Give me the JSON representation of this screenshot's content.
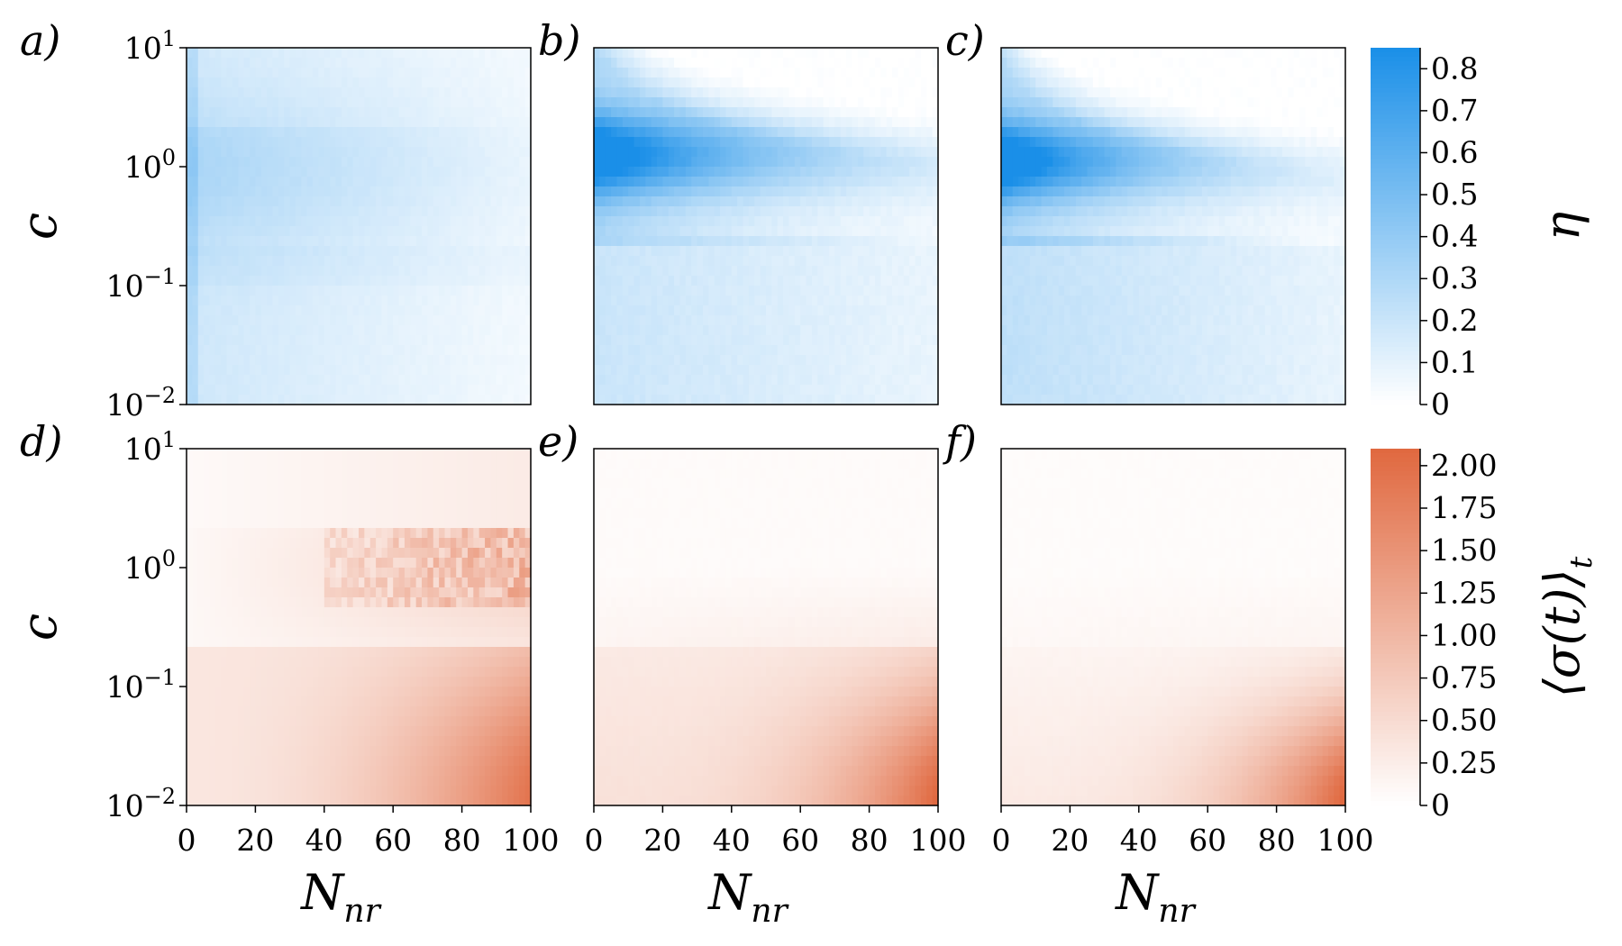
{
  "chart_data": [
    {
      "type": "heatmap",
      "panel": "a)",
      "row": "top",
      "xlabel": "",
      "ylabel": "c",
      "x_range": [
        0,
        100
      ],
      "y_range": [
        0.01,
        10
      ],
      "y_scale": "log",
      "x_ticks": [],
      "y_ticks": [
        "10^1",
        "10^0",
        "10^-1",
        "10^-2"
      ],
      "colorbar": "eta",
      "peak_value": 0.45,
      "description_shape": "weak broad band"
    },
    {
      "type": "heatmap",
      "panel": "b)",
      "row": "top",
      "xlabel": "",
      "ylabel": "",
      "x_range": [
        0,
        100
      ],
      "y_range": [
        0.01,
        10
      ],
      "y_scale": "log",
      "colorbar": "eta",
      "peak_value": 0.85
    },
    {
      "type": "heatmap",
      "panel": "c)",
      "row": "top",
      "xlabel": "",
      "ylabel": "",
      "x_range": [
        0,
        100
      ],
      "y_range": [
        0.01,
        10
      ],
      "y_scale": "log",
      "colorbar": "eta",
      "peak_value": 0.85
    },
    {
      "type": "heatmap",
      "panel": "d)",
      "row": "bottom",
      "xlabel_main": "N",
      "xlabel_sub": "nr",
      "ylabel": "c",
      "x_range": [
        0,
        100
      ],
      "y_range": [
        0.01,
        10
      ],
      "y_scale": "log",
      "x_ticks": [
        "0",
        "20",
        "40",
        "60",
        "80",
        "100"
      ],
      "y_ticks": [
        "10^1",
        "10^0",
        "10^-1",
        "10^-2"
      ],
      "colorbar": "sigma",
      "peak_value": 2.0
    },
    {
      "type": "heatmap",
      "panel": "e)",
      "row": "bottom",
      "xlabel_main": "N",
      "xlabel_sub": "nr",
      "ylabel": "",
      "x_range": [
        0,
        100
      ],
      "y_range": [
        0.01,
        10
      ],
      "y_scale": "log",
      "x_ticks": [
        "0",
        "20",
        "40",
        "60",
        "80",
        "100"
      ],
      "colorbar": "sigma",
      "peak_value": 2.0
    },
    {
      "type": "heatmap",
      "panel": "f)",
      "row": "bottom",
      "xlabel_main": "N",
      "xlabel_sub": "nr",
      "ylabel": "",
      "x_range": [
        0,
        100
      ],
      "y_range": [
        0.01,
        10
      ],
      "y_scale": "log",
      "x_ticks": [
        "0",
        "20",
        "40",
        "60",
        "80",
        "100"
      ],
      "colorbar": "sigma",
      "peak_value": 2.0
    }
  ],
  "colorbars": {
    "eta": {
      "label": "η",
      "range": [
        0,
        0.85
      ],
      "ticks": [
        "0",
        "0.1",
        "0.2",
        "0.3",
        "0.4",
        "0.5",
        "0.6",
        "0.7",
        "0.8"
      ],
      "tick_values": [
        0,
        0.1,
        0.2,
        0.3,
        0.4,
        0.5,
        0.6,
        0.7,
        0.8
      ],
      "color_max": "#1a8fe8",
      "color_min": "#ffffff"
    },
    "sigma": {
      "label": "⟨σ(t)⟩",
      "label_sub": "t",
      "range": [
        0,
        2.1
      ],
      "ticks": [
        "0",
        "0.25",
        "0.50",
        "0.75",
        "1.00",
        "1.25",
        "1.50",
        "1.75",
        "2.00"
      ],
      "tick_values": [
        0,
        0.25,
        0.5,
        0.75,
        1.0,
        1.25,
        1.5,
        1.75,
        2.0
      ],
      "color_max": "#e0683f",
      "color_min": "#ffffff"
    }
  }
}
